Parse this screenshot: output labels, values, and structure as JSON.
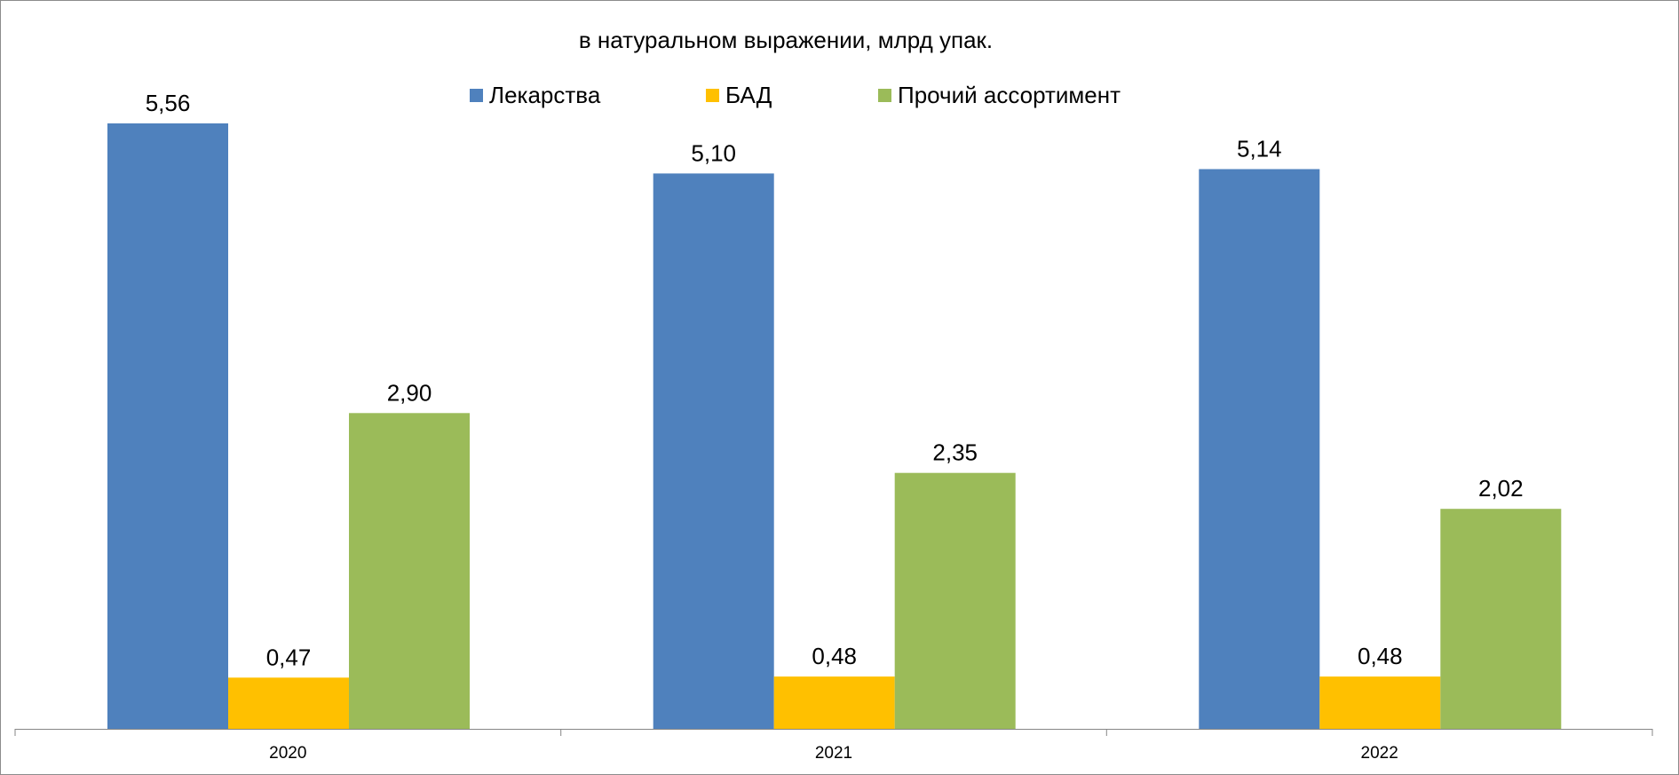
{
  "chart_data": {
    "type": "bar",
    "title": "в натуральном выражении, млрд упак.",
    "categories": [
      "2020",
      "2021",
      "2022"
    ],
    "series": [
      {
        "name": "Лекарства",
        "values": [
          5.56,
          5.1,
          5.14
        ],
        "labels": [
          "5,56",
          "5,10",
          "5,14"
        ],
        "color": "#4F81BD"
      },
      {
        "name": "БАД",
        "values": [
          0.47,
          0.48,
          0.48
        ],
        "labels": [
          "0,47",
          "0,48",
          "0,48"
        ],
        "color": "#FFC000"
      },
      {
        "name": "Прочий ассортимент",
        "values": [
          2.9,
          2.35,
          2.02
        ],
        "labels": [
          "2,90",
          "2,35",
          "2,02"
        ],
        "color": "#9BBB59"
      }
    ],
    "xlabel": "",
    "ylabel": "",
    "ylim": [
      0,
      5.56
    ],
    "grid": false,
    "legend_position": "top",
    "y_axis_visible": false
  }
}
